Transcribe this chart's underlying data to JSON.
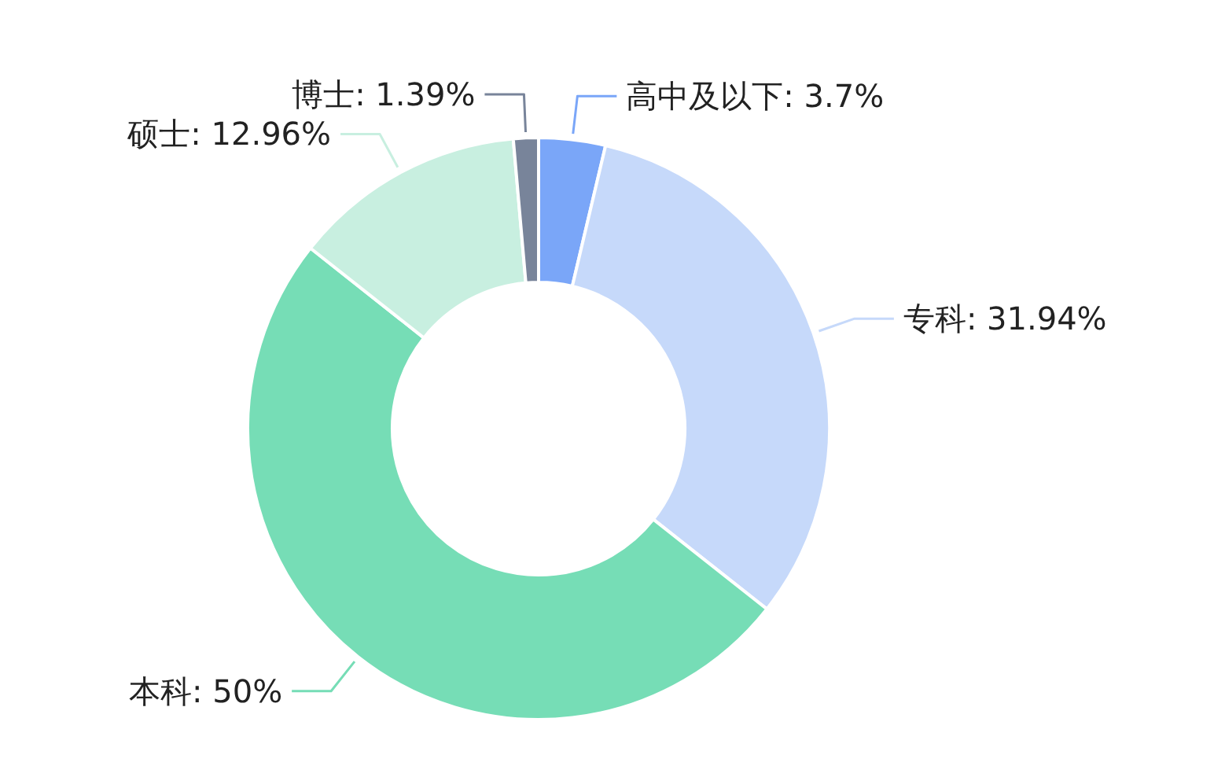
{
  "chart_data": {
    "type": "donut",
    "categories": [
      "高中及以下",
      "专科",
      "本科",
      "硕士",
      "博士"
    ],
    "values": [
      3.7,
      31.94,
      50,
      12.96,
      1.39
    ],
    "value_labels": [
      "3.7%",
      "31.94%",
      "50%",
      "12.96%",
      "1.39%"
    ],
    "colors": [
      "#7aa6f8",
      "#c6d9fa",
      "#76ddb6",
      "#c8efe0",
      "#78849a"
    ]
  }
}
